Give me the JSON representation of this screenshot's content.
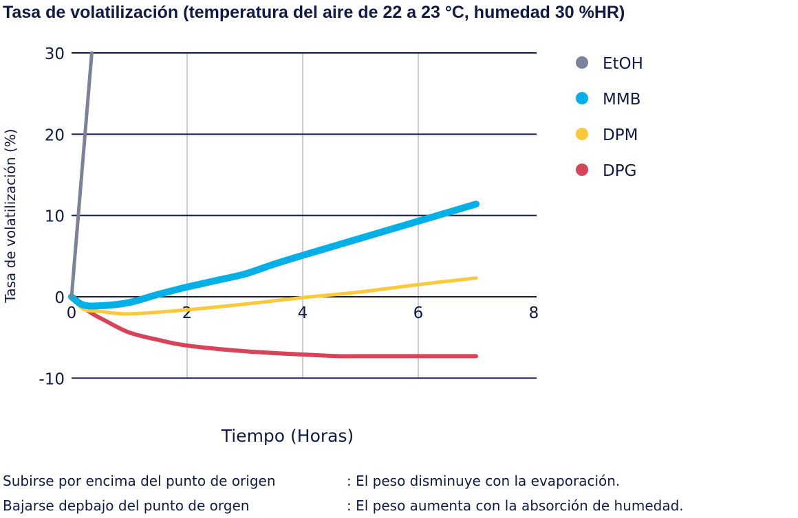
{
  "chart_data": {
    "type": "line",
    "title": "Tasa de volatilización (temperatura del aire de 22 a 23 °C, humedad 30 %HR)",
    "xlabel": "Tiempo (Horas)",
    "ylabel": "Tasa de volatilización (%)",
    "xlim": [
      0,
      8
    ],
    "ylim": [
      -10,
      30
    ],
    "xticks": [
      "0",
      "2",
      "4",
      "6",
      "8"
    ],
    "yticks": [
      "30",
      "20",
      "10",
      "0",
      "-10"
    ],
    "grid": "horizontal at y ticks, vertical at x = 2, 4, 6",
    "legend_position": "right",
    "series": [
      {
        "name": "EtOH",
        "color": "#7b8299",
        "x": [
          0,
          0.35
        ],
        "y": [
          0,
          30
        ]
      },
      {
        "name": "MMB",
        "color": "#00b0e6",
        "x": [
          0,
          0.2,
          0.5,
          1,
          1.5,
          2,
          2.5,
          3,
          3.5,
          4,
          5,
          6,
          7
        ],
        "y": [
          0,
          -1,
          -1.1,
          -0.7,
          0.3,
          1.2,
          2,
          2.8,
          4,
          5.1,
          7.2,
          9.3,
          11.4
        ]
      },
      {
        "name": "DPM",
        "color": "#fcc93a",
        "x": [
          0,
          0.2,
          0.5,
          1,
          2,
          3,
          4,
          5,
          6,
          7
        ],
        "y": [
          0,
          -1.5,
          -1.8,
          -2.1,
          -1.6,
          -0.9,
          -0.1,
          0.6,
          1.5,
          2.3
        ]
      },
      {
        "name": "DPG",
        "color": "#d9435a",
        "x": [
          0,
          0.3,
          0.6,
          1,
          1.5,
          2,
          3,
          4,
          4.6,
          5,
          6,
          7
        ],
        "y": [
          0,
          -1.8,
          -3,
          -4.4,
          -5.3,
          -6,
          -6.7,
          -7.1,
          -7.3,
          -7.3,
          -7.3,
          -7.3
        ]
      }
    ]
  },
  "notes": [
    {
      "left": "Subirse por encima del punto de origen",
      "right": ": El peso disminuye con la evaporación."
    },
    {
      "left": "Bajarse depbajo del punto de orgen",
      "right": ": El peso aumenta con la absorción de humedad."
    }
  ]
}
